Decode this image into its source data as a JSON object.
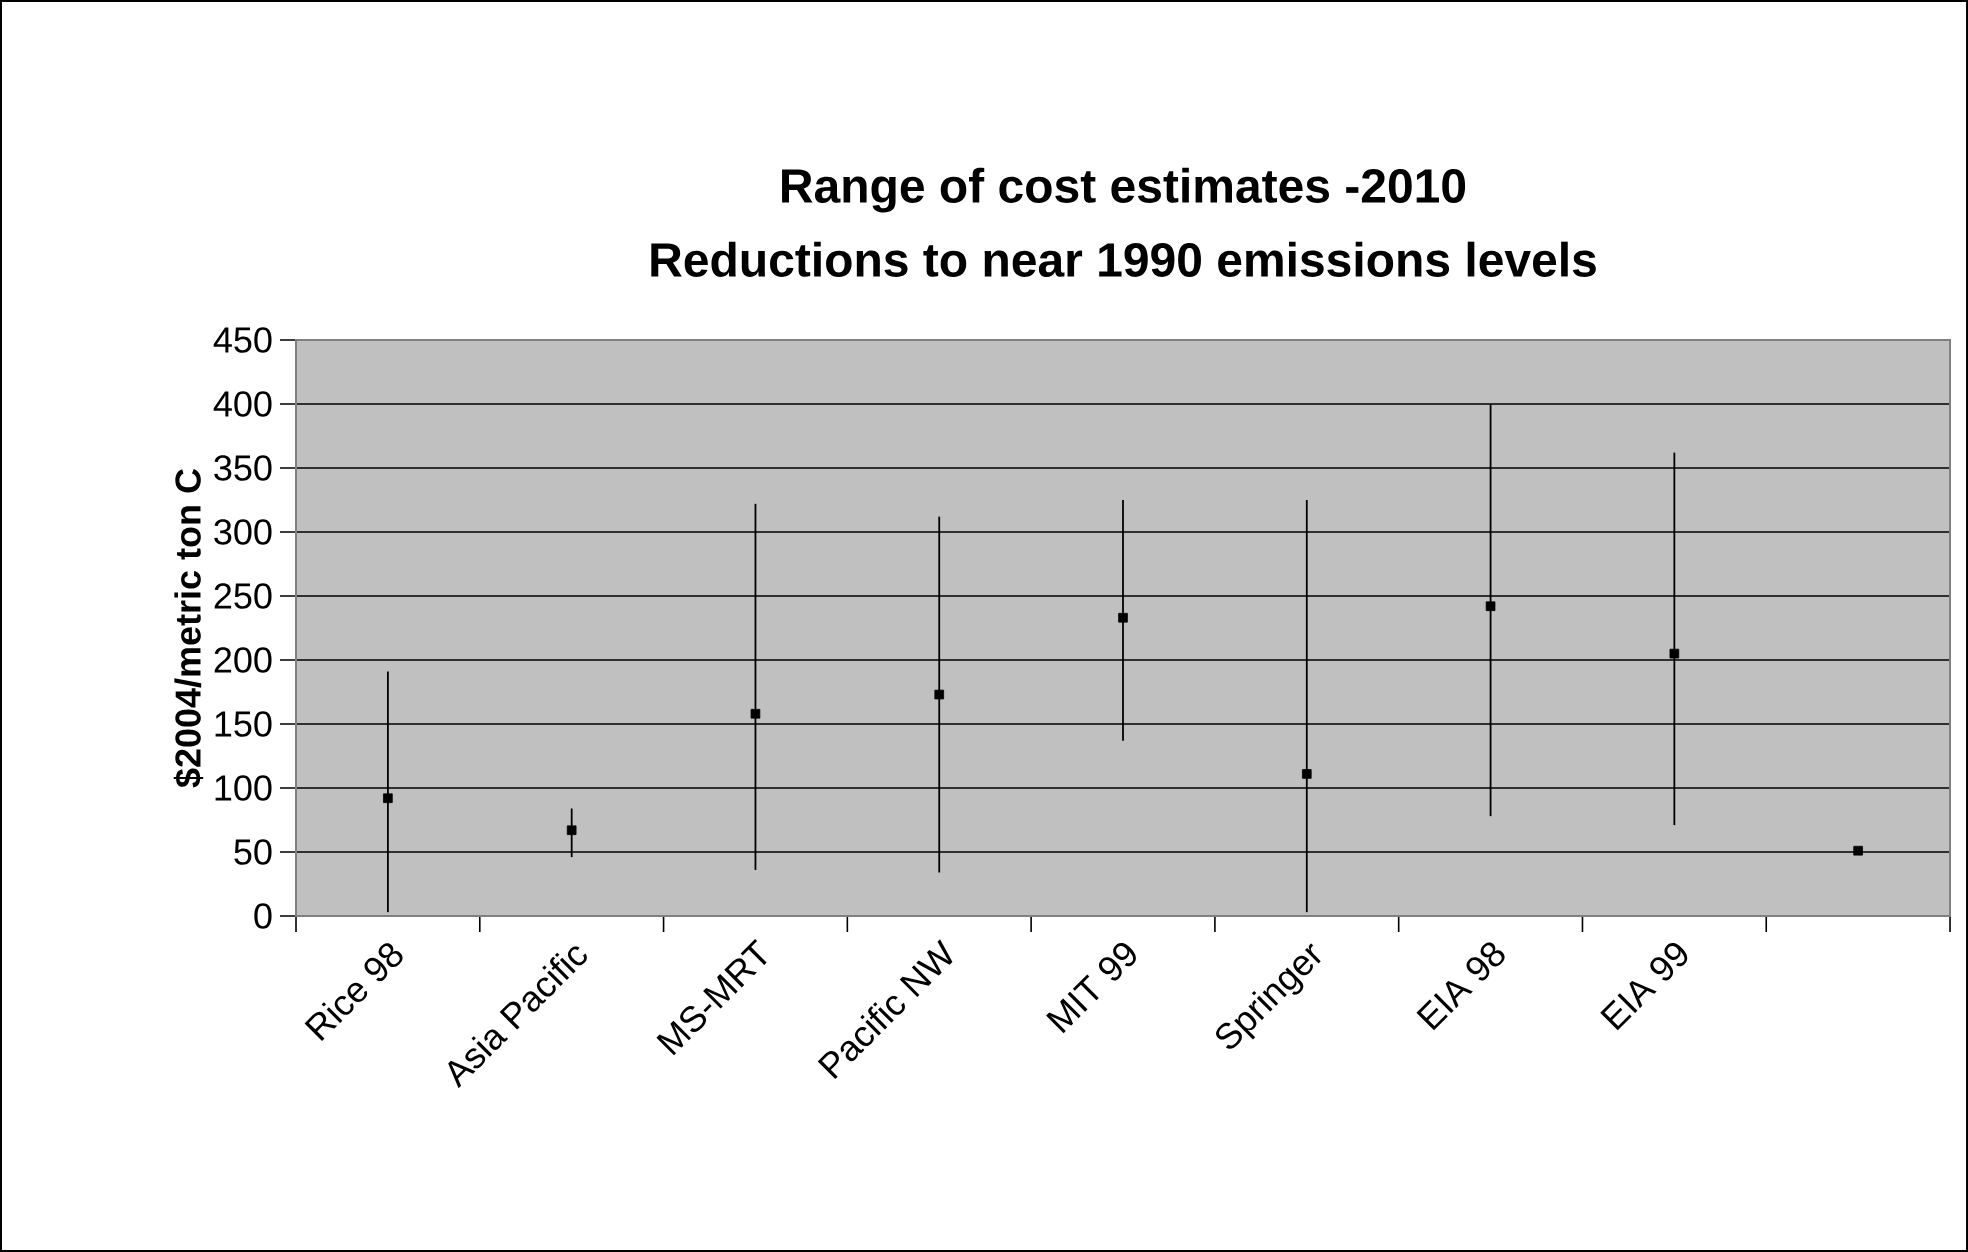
{
  "chart_data": {
    "type": "scatter",
    "title": "Range of cost estimates -2010",
    "subtitle": "Reductions to near 1990 emissions levels",
    "ylabel": "$2004/metric ton C",
    "categories": [
      "Rice 98",
      "Asia Pacific",
      "MS-MRT",
      "Pacific NW",
      "MIT 99",
      "Springer",
      "EIA 98",
      "EIA 99",
      null
    ],
    "series": [
      {
        "color": "#000000",
        "values": [
          92,
          67,
          158,
          173,
          233,
          111,
          242,
          205,
          51
        ],
        "errors": [
          [
            3,
            191
          ],
          [
            46,
            84
          ],
          [
            36,
            322
          ],
          [
            34,
            312
          ],
          [
            137,
            325
          ],
          [
            3,
            325
          ],
          [
            78,
            400
          ],
          [
            71,
            362
          ],
          null
        ]
      }
    ],
    "ylim": [
      0,
      450
    ],
    "yticks": [
      0,
      50,
      100,
      150,
      200,
      250,
      300,
      350,
      400,
      450
    ],
    "grid": "y",
    "marker": "square"
  }
}
